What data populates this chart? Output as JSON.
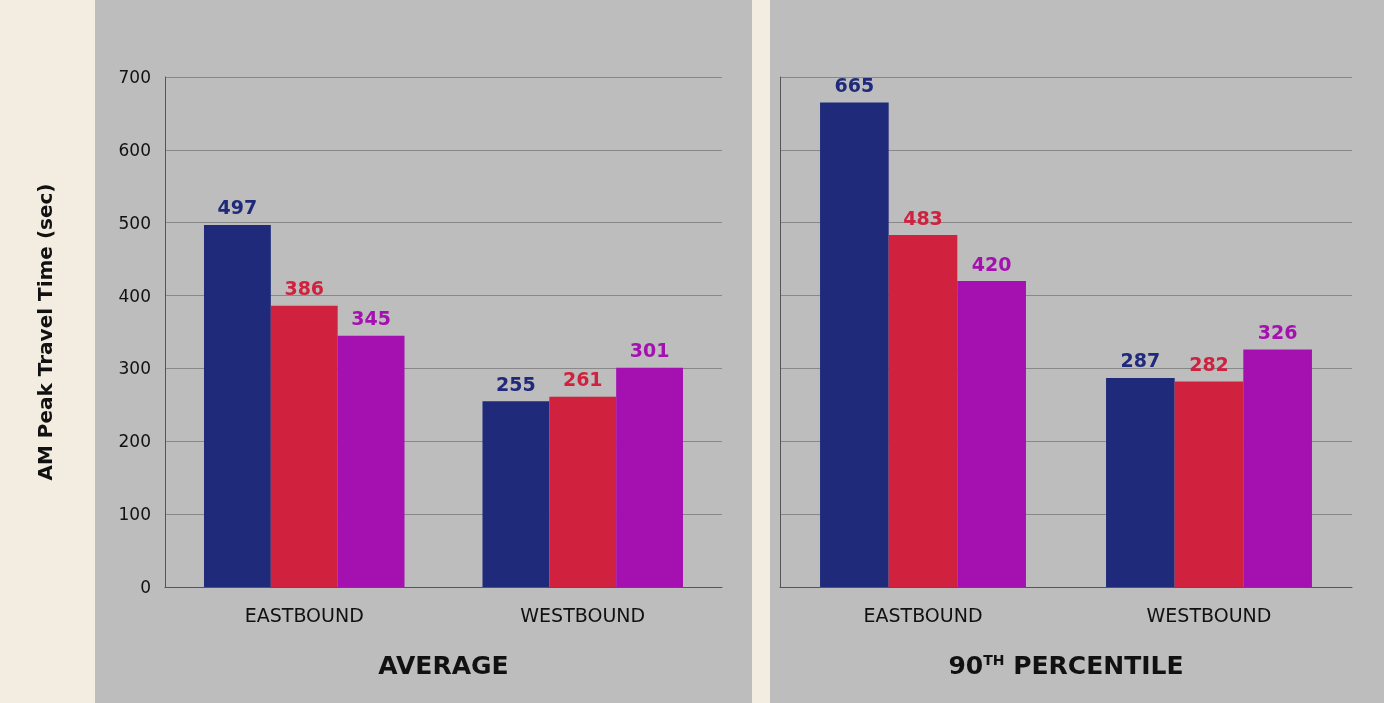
{
  "chart_data": [
    {
      "type": "bar",
      "xlabel": "AVERAGE",
      "ylabel": "AM Peak Travel Time (sec)",
      "categories": [
        "EASTBOUND",
        "WESTBOUND"
      ],
      "series": [
        {
          "color": "#1f2a7a",
          "values": [
            497,
            255
          ]
        },
        {
          "color": "#d0223f",
          "values": [
            386,
            261
          ]
        },
        {
          "color": "#a510b0",
          "values": [
            345,
            301
          ]
        }
      ],
      "ylim": [
        0,
        700
      ],
      "yticks": [
        0,
        100,
        200,
        300,
        400,
        500,
        600,
        700
      ],
      "grid": "y",
      "data_labels": true
    },
    {
      "type": "bar",
      "xlabel": "90$^{TH}$ PERCENTILE",
      "categories": [
        "EASTBOUND",
        "WESTBOUND"
      ],
      "series": [
        {
          "color": "#1f2a7a",
          "values": [
            665,
            287
          ]
        },
        {
          "color": "#d0223f",
          "values": [
            483,
            282
          ]
        },
        {
          "color": "#a510b0",
          "values": [
            420,
            326
          ]
        }
      ],
      "ylim": [
        0,
        700
      ],
      "yticks": [
        0,
        100,
        200,
        300,
        400,
        500,
        600,
        700
      ],
      "grid": "y",
      "data_labels": true,
      "tick_labels": "x"
    }
  ]
}
